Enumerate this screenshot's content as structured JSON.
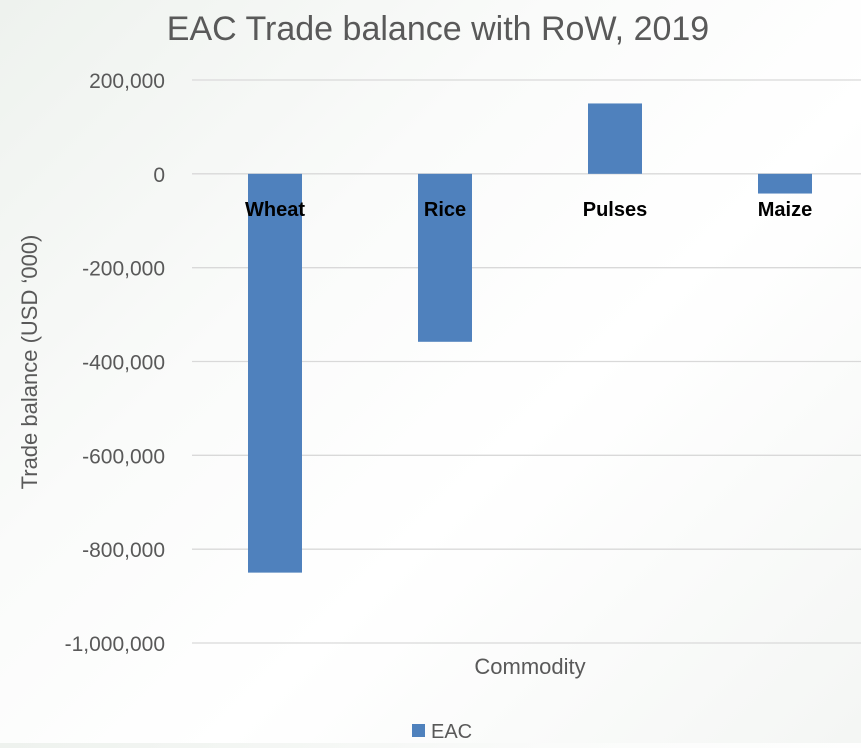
{
  "chart_data": {
    "type": "bar",
    "title": "EAC Trade balance with RoW, 2019",
    "xlabel": "Commodity",
    "ylabel": "Trade balance (USD ‘000)",
    "categories": [
      "Wheat",
      "Rice",
      "Pulses",
      "Maize"
    ],
    "series": [
      {
        "name": "EAC",
        "values": [
          -850000,
          -358000,
          150000,
          -42000
        ],
        "color": "#4f81bd"
      }
    ],
    "ylim": [
      -1000000,
      200000
    ],
    "yticks": [
      200000,
      0,
      -200000,
      -400000,
      -600000,
      -800000,
      -1000000
    ],
    "ytick_labels": [
      "200,000",
      "0",
      "-200,000",
      "-400,000",
      "-600,000",
      "-800,000",
      "-1,000,000"
    ],
    "grid": true,
    "legend_position": "bottom"
  }
}
